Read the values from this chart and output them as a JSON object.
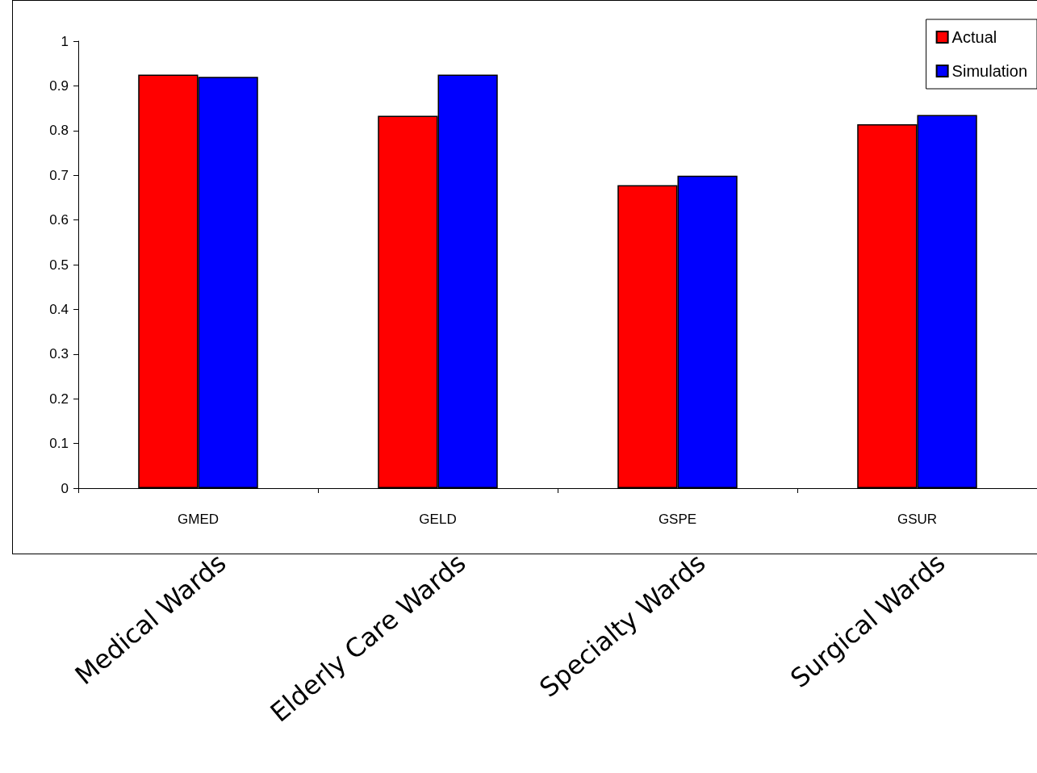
{
  "chart_data": {
    "type": "bar",
    "categories": [
      "GMED",
      "GELD",
      "GSPE",
      "GSUR"
    ],
    "series": [
      {
        "name": "Actual",
        "color": "#ff0000",
        "values": [
          0.925,
          0.833,
          0.678,
          0.814
        ]
      },
      {
        "name": "Simulation",
        "color": "#0000ff",
        "values": [
          0.92,
          0.925,
          0.699,
          0.835
        ]
      }
    ],
    "ylim": [
      0,
      1
    ],
    "yticks": [
      0,
      0.1,
      0.2,
      0.3,
      0.4,
      0.5,
      0.6,
      0.7,
      0.8,
      0.9,
      1
    ],
    "grid": false,
    "legend": "top right",
    "annotations": [
      "Medical Wards",
      "Elderly Care Wards",
      "Specialty Wards",
      "Surgical Wards"
    ]
  }
}
